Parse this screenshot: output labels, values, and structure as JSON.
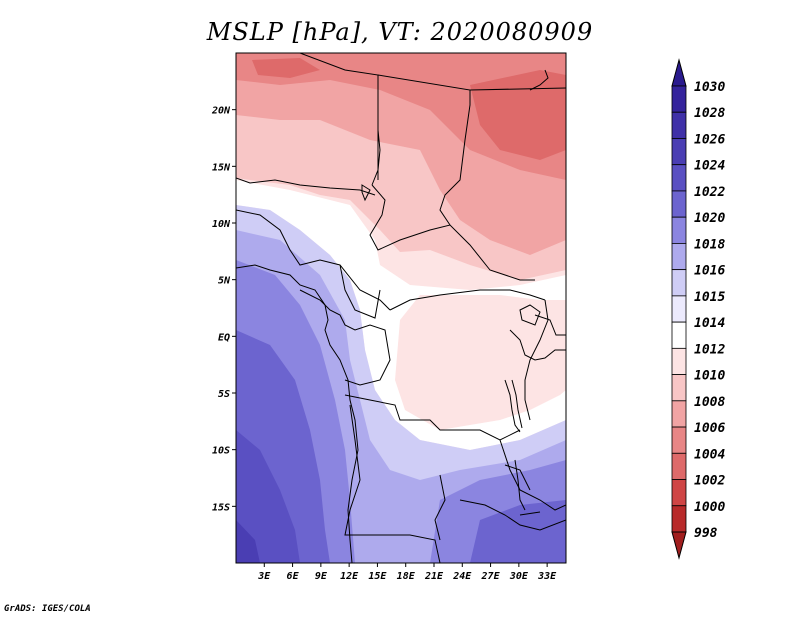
{
  "title": "MSLP [hPa], VT: 2020080909",
  "credit": "GrADS: IGES/COLA",
  "map": {
    "lon_range": [
      0,
      35
    ],
    "lat_range": [
      -20,
      25
    ],
    "lon_ticks": [
      {
        "value": 3,
        "label": "3E"
      },
      {
        "value": 6,
        "label": "6E"
      },
      {
        "value": 9,
        "label": "9E"
      },
      {
        "value": 12,
        "label": "12E"
      },
      {
        "value": 15,
        "label": "15E"
      },
      {
        "value": 18,
        "label": "18E"
      },
      {
        "value": 21,
        "label": "21E"
      },
      {
        "value": 24,
        "label": "24E"
      },
      {
        "value": 27,
        "label": "27E"
      },
      {
        "value": 30,
        "label": "30E"
      },
      {
        "value": 33,
        "label": "33E"
      }
    ],
    "lat_ticks": [
      {
        "value": 20,
        "label": "20N"
      },
      {
        "value": 15,
        "label": "15N"
      },
      {
        "value": 10,
        "label": "10N"
      },
      {
        "value": 5,
        "label": "5N"
      },
      {
        "value": 0,
        "label": "EQ"
      },
      {
        "value": -5,
        "label": "5S"
      },
      {
        "value": -10,
        "label": "10S"
      },
      {
        "value": -15,
        "label": "15S"
      }
    ]
  },
  "colorbar": {
    "levels": [
      {
        "label": "1030",
        "color": "#2a1a8e"
      },
      {
        "label": "1028",
        "color": "#34239c"
      },
      {
        "label": "1026",
        "color": "#3f30a8"
      },
      {
        "label": "1024",
        "color": "#4a3eb3"
      },
      {
        "label": "1022",
        "color": "#5a50c2"
      },
      {
        "label": "1020",
        "color": "#6c64cf"
      },
      {
        "label": "1018",
        "color": "#8b85e0"
      },
      {
        "label": "1016",
        "color": "#aeaaed"
      },
      {
        "label": "1015",
        "color": "#cfcdf6"
      },
      {
        "label": "1014",
        "color": "#eceafd"
      },
      {
        "label": "1012",
        "color": "#ffffff"
      },
      {
        "label": "1010",
        "color": "#fde4e4"
      },
      {
        "label": "1008",
        "color": "#f8c6c6"
      },
      {
        "label": "1006",
        "color": "#f1a4a4"
      },
      {
        "label": "1004",
        "color": "#e88686"
      },
      {
        "label": "1002",
        "color": "#de6a6a"
      },
      {
        "label": "1000",
        "color": "#cf4545"
      },
      {
        "label": "998",
        "color": "#b82a2a"
      }
    ],
    "bottom_triangle_color": "#a11e1e"
  }
}
